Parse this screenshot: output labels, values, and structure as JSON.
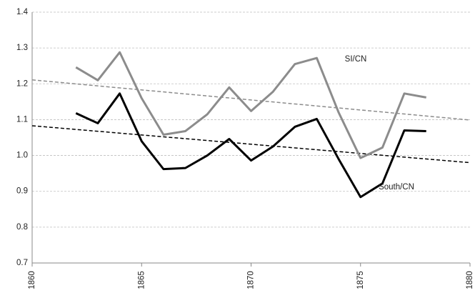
{
  "chart_data": {
    "type": "line",
    "xlim": [
      1860,
      1880
    ],
    "xticks": [
      1860,
      1865,
      1870,
      1875,
      1880
    ],
    "ylim": [
      0.7,
      1.4
    ],
    "yticks": [
      0.7,
      0.8,
      0.9,
      {
        "value": 1,
        "label": "1.0"
      },
      1.1,
      1.2,
      1.3,
      1.4
    ],
    "grid": true,
    "series": [
      {
        "name": "SI/CN",
        "color": "#8c8c8c",
        "x": [
          1862,
          1863,
          1864,
          1865,
          1866,
          1867,
          1868,
          1869,
          1870,
          1871,
          1872,
          1873,
          1874,
          1875,
          1876,
          1877,
          1878
        ],
        "values": [
          1.246,
          1.21,
          1.288,
          1.16,
          1.058,
          1.068,
          1.115,
          1.19,
          1.124,
          1.178,
          1.255,
          1.272,
          1.12,
          0.993,
          1.022,
          1.173,
          1.162
        ]
      },
      {
        "name": "South/CN",
        "color": "#000000",
        "x": [
          1862,
          1863,
          1864,
          1865,
          1866,
          1867,
          1868,
          1869,
          1870,
          1871,
          1872,
          1873,
          1874,
          1875,
          1876,
          1877,
          1878
        ],
        "values": [
          1.118,
          1.09,
          1.173,
          1.04,
          0.962,
          0.965,
          1.0,
          1.046,
          0.986,
          1.025,
          1.08,
          1.102,
          0.99,
          0.884,
          0.922,
          1.07,
          1.068
        ]
      }
    ],
    "trendlines": [
      {
        "color": "#8c8c8c",
        "x": [
          1860,
          1880
        ],
        "values": [
          1.211,
          1.099
        ]
      },
      {
        "color": "#000000",
        "x": [
          1860,
          1880
        ],
        "values": [
          1.083,
          0.98
        ]
      }
    ]
  }
}
